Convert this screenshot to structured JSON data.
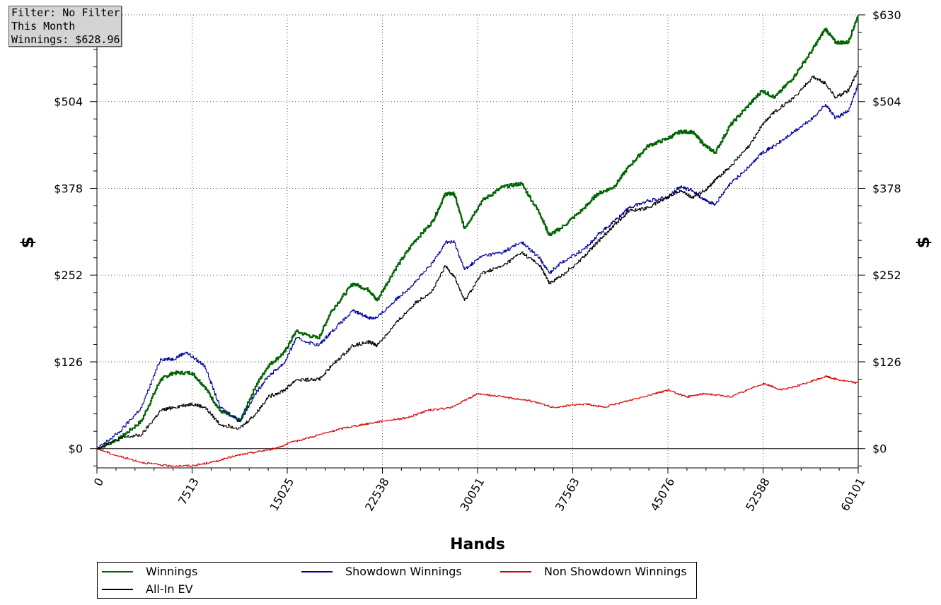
{
  "info": {
    "filter": "Filter: No Filter",
    "period": "This Month",
    "winnings": "Winnings: $628.96"
  },
  "chart_data": {
    "type": "line",
    "xlabel": "Hands",
    "ylabel": "$",
    "ylabel_right": "$",
    "xlim": [
      0,
      60101
    ],
    "ylim": [
      -28,
      630
    ],
    "x_ticks": [
      0,
      7513,
      15025,
      22538,
      30051,
      37563,
      45076,
      52588,
      60101
    ],
    "y_ticks": [
      0,
      126,
      252,
      378,
      504,
      630
    ],
    "y_tick_labels": [
      "$0",
      "$126",
      "$252",
      "$378",
      "$504",
      "$630"
    ],
    "grid": true,
    "legend_position": "bottom",
    "series": [
      {
        "name": "Winnings",
        "color": "#006400",
        "x": [
          0,
          1800,
          3500,
          5000,
          6000,
          7500,
          8500,
          9700,
          11300,
          12500,
          13500,
          14800,
          15700,
          17500,
          18500,
          20200,
          21500,
          22100,
          23500,
          25000,
          26500,
          27500,
          28200,
          29000,
          30400,
          32000,
          33500,
          35000,
          35700,
          36600,
          38500,
          39500,
          40800,
          42000,
          43500,
          45000,
          46000,
          47000,
          48000,
          48800,
          50000,
          51500,
          52500,
          53500,
          55000,
          56500,
          57500,
          58300,
          59300,
          60101
        ],
        "values": [
          0,
          15,
          40,
          100,
          110,
          110,
          90,
          55,
          40,
          90,
          120,
          140,
          170,
          160,
          200,
          240,
          230,
          215,
          260,
          300,
          330,
          370,
          370,
          320,
          360,
          380,
          385,
          340,
          310,
          320,
          350,
          370,
          380,
          410,
          440,
          450,
          460,
          460,
          440,
          430,
          470,
          500,
          520,
          510,
          540,
          580,
          610,
          590,
          590,
          630
        ]
      },
      {
        "name": "Showdown Winnings",
        "color": "#00009b",
        "x": [
          0,
          1800,
          3500,
          5000,
          6000,
          7000,
          8500,
          9700,
          11300,
          12500,
          13500,
          14800,
          15700,
          17500,
          18500,
          20200,
          21500,
          22100,
          23500,
          25000,
          26500,
          27500,
          28200,
          29000,
          30400,
          32000,
          33500,
          35000,
          35700,
          36600,
          38500,
          39500,
          40800,
          42000,
          43500,
          45000,
          46000,
          47000,
          48000,
          48800,
          50000,
          51500,
          52500,
          53500,
          55000,
          56500,
          57500,
          58300,
          59300,
          60101
        ],
        "values": [
          0,
          25,
          60,
          130,
          130,
          140,
          120,
          60,
          40,
          80,
          105,
          125,
          160,
          150,
          170,
          200,
          190,
          190,
          215,
          240,
          270,
          300,
          300,
          260,
          280,
          285,
          300,
          275,
          255,
          270,
          290,
          310,
          330,
          350,
          360,
          365,
          380,
          375,
          360,
          355,
          385,
          410,
          430,
          440,
          460,
          480,
          500,
          480,
          490,
          530
        ]
      },
      {
        "name": "Non Showdown Winnings",
        "color": "#d40000",
        "x": [
          0,
          1500,
          3500,
          5500,
          7513,
          9000,
          11000,
          12500,
          14000,
          15500,
          17500,
          19500,
          21000,
          22500,
          24500,
          26000,
          28000,
          30051,
          32000,
          34000,
          36000,
          38500,
          40000,
          42000,
          44000,
          45076,
          46500,
          48000,
          50000,
          52588,
          54000,
          56000,
          57500,
          58500,
          60101
        ],
        "values": [
          0,
          -10,
          -20,
          -25,
          -25,
          -20,
          -10,
          -5,
          0,
          10,
          20,
          30,
          35,
          40,
          45,
          55,
          60,
          80,
          75,
          70,
          60,
          65,
          60,
          70,
          80,
          85,
          75,
          80,
          75,
          95,
          85,
          95,
          105,
          100,
          95
        ]
      },
      {
        "name": "All-In EV",
        "color": "#000000",
        "x": [
          0,
          1800,
          3500,
          5000,
          6000,
          7500,
          8500,
          9700,
          11300,
          12500,
          13500,
          14800,
          15700,
          17500,
          18500,
          20200,
          21500,
          22100,
          23500,
          25000,
          26500,
          27500,
          28200,
          29000,
          30400,
          32000,
          33500,
          35000,
          35700,
          36600,
          38500,
          39500,
          40800,
          42000,
          43500,
          45000,
          46000,
          47000,
          48000,
          48800,
          50000,
          51500,
          52500,
          53500,
          55000,
          56500,
          57500,
          58300,
          59300,
          60101
        ],
        "values": [
          0,
          15,
          20,
          55,
          60,
          65,
          60,
          35,
          30,
          50,
          75,
          85,
          100,
          100,
          120,
          150,
          155,
          150,
          180,
          210,
          230,
          265,
          250,
          215,
          255,
          265,
          285,
          265,
          240,
          250,
          280,
          300,
          325,
          345,
          350,
          365,
          375,
          365,
          375,
          390,
          410,
          440,
          470,
          490,
          510,
          540,
          530,
          510,
          520,
          550
        ]
      }
    ]
  },
  "legend": [
    {
      "label": "Winnings",
      "color": "#006400"
    },
    {
      "label": "Showdown Winnings",
      "color": "#00009b"
    },
    {
      "label": "Non Showdown Winnings",
      "color": "#d40000"
    },
    {
      "label": "All-In EV",
      "color": "#000000"
    }
  ]
}
